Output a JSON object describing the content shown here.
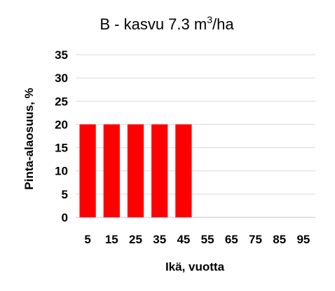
{
  "chart_data": {
    "type": "bar",
    "title": {
      "main": "B - kasvu 7.3 m",
      "superscript": "3",
      "suffix": "/ha"
    },
    "xlabel": "Ikä, vuotta",
    "ylabel": "Pinta-alaosuus, %",
    "categories": [
      "5",
      "15",
      "25",
      "35",
      "45",
      "55",
      "65",
      "75",
      "85",
      "95"
    ],
    "values": [
      20,
      20,
      20,
      20,
      20,
      0,
      0,
      0,
      0,
      0
    ],
    "ylim": [
      0,
      35
    ],
    "yticks": [
      "0",
      "5",
      "10",
      "15",
      "20",
      "25",
      "30",
      "35"
    ],
    "grid": true,
    "legend": "none",
    "bar_color": "#ff0000"
  }
}
